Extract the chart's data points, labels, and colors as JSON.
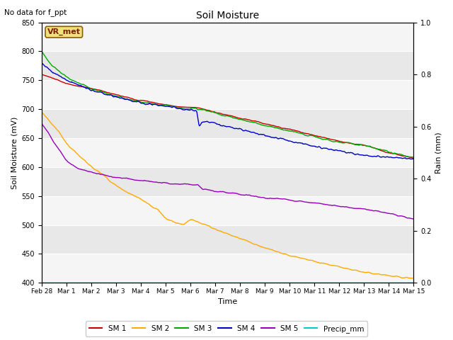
{
  "title": "Soil Moisture",
  "xlabel": "Time",
  "ylabel_left": "Soil Moisture (mV)",
  "ylabel_right": "Rain (mm)",
  "top_left_text": "No data for f_ppt",
  "annotation_text": "VR_met",
  "ylim_left": [
    400,
    850
  ],
  "ylim_right": [
    0.0,
    1.0
  ],
  "yticks_left": [
    400,
    450,
    500,
    550,
    600,
    650,
    700,
    750,
    800,
    850
  ],
  "yticks_right": [
    0.0,
    0.2,
    0.4,
    0.6,
    0.8,
    1.0
  ],
  "xlim": [
    0,
    15
  ],
  "xtick_positions": [
    0,
    1,
    2,
    3,
    4,
    5,
    6,
    7,
    8,
    9,
    10,
    11,
    12,
    13,
    14,
    15
  ],
  "xtick_labels": [
    "Feb 28",
    "Mar 1",
    "Mar 2",
    "Mar 3",
    "Mar 4",
    "Mar 5",
    "Mar 6",
    "Mar 7",
    "Mar 8",
    "Mar 9",
    "Mar 10",
    "Mar 11",
    "Mar 12",
    "Mar 13",
    "Mar 14",
    "Mar 15"
  ],
  "colors": {
    "SM1": "#cc0000",
    "SM2": "#ffaa00",
    "SM3": "#00aa00",
    "SM4": "#0000cc",
    "SM5": "#9900bb",
    "Precip": "#00cccc"
  },
  "bg_color": "#ffffff",
  "band_colors": [
    "#e8e8e8",
    "#f5f5f5"
  ],
  "figsize": [
    6.4,
    4.8
  ],
  "dpi": 100
}
